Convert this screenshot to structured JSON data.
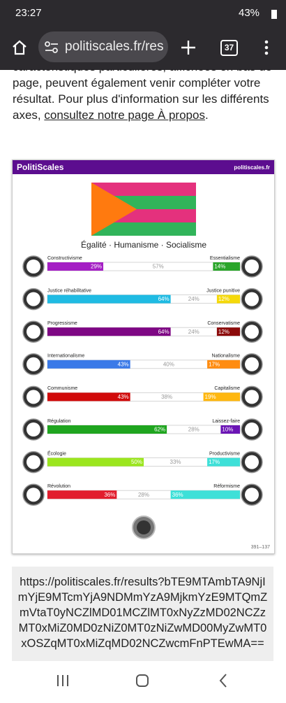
{
  "status_bar": {
    "time": "23:27",
    "battery": "43%"
  },
  "browser": {
    "url": "politiscales.fr/res",
    "tabs": "37"
  },
  "article": {
    "text": "caractéristiques particulières, affichées en bas de page, peuvent également venir compléter votre résultat. Pour plus d'information sur les différents axes, ",
    "link": "consultez notre page À propos",
    "end": "."
  },
  "card": {
    "brand": "PolitiScales",
    "site": "politiscales.fr",
    "slogan": "Égalité · Humanisme · Socialisme",
    "footer": "391–137",
    "axes": [
      {
        "left_name": "Constructivisme",
        "right_name": "Essentialisme",
        "left": 29,
        "left_label": "29%",
        "neutral": 57,
        "neutral_label": "57%",
        "right": 14,
        "right_label": "14%",
        "left_color": "#a41fc4",
        "right_color": "#2ba52b"
      },
      {
        "left_name": "Justice réhabilitative",
        "right_name": "Justice punitive",
        "left": 64,
        "left_label": "64%",
        "neutral": 24,
        "neutral_label": "24%",
        "right": 12,
        "right_label": "12%",
        "left_color": "#1fbbe3",
        "right_color": "#f5d90a"
      },
      {
        "left_name": "Progressisme",
        "right_name": "Conservatisme",
        "left": 64,
        "left_label": "64%",
        "neutral": 24,
        "neutral_label": "24%",
        "right": 12,
        "right_label": "12%",
        "left_color": "#7e0784",
        "right_color": "#8c0a0a"
      },
      {
        "left_name": "Internationalisme",
        "right_name": "Nationalisme",
        "left": 43,
        "left_label": "43%",
        "neutral": 40,
        "neutral_label": "40%",
        "right": 17,
        "right_label": "17%",
        "left_color": "#3a7ae8",
        "right_color": "#ff8c10"
      },
      {
        "left_name": "Communisme",
        "right_name": "Capitalisme",
        "left": 43,
        "left_label": "43%",
        "neutral": 38,
        "neutral_label": "38%",
        "right": 19,
        "right_label": "19%",
        "left_color": "#d10a0a",
        "right_color": "#ffb70f"
      },
      {
        "left_name": "Régulation",
        "right_name": "Laissez-faire",
        "left": 62,
        "left_label": "62%",
        "neutral": 28,
        "neutral_label": "28%",
        "right": 10,
        "right_label": "10%",
        "left_color": "#1fa51f",
        "right_color": "#6b15b5"
      },
      {
        "left_name": "Écologie",
        "right_name": "Productivisme",
        "left": 50,
        "left_label": "50%",
        "neutral": 33,
        "neutral_label": "33%",
        "right": 17,
        "right_label": "17%",
        "left_color": "#9be61e",
        "right_color": "#3ee0d8"
      },
      {
        "left_name": "Révolution",
        "right_name": "Réformisme",
        "left": 36,
        "left_label": "36%",
        "neutral": 28,
        "neutral_label": "28%",
        "right": 36,
        "right_label": "36%",
        "left_color": "#e21d2d",
        "right_color": "#3ee0d8"
      }
    ]
  },
  "result_url": "https://politiscales.fr/results?bTE9MTAmbTA9NjImYjE9MTcmYjA9NDMmYzA9MjkmYzE9MTQmZmVtaT0yNCZlMD01MCZlMT0xNyZzMD02NCZzMT0xMiZ0MD0zNiZ0MT0zNiZwMD00MyZwMT0xOSZqMT0xMiZqMD02NCZwcmFnPTEwMA=="
}
